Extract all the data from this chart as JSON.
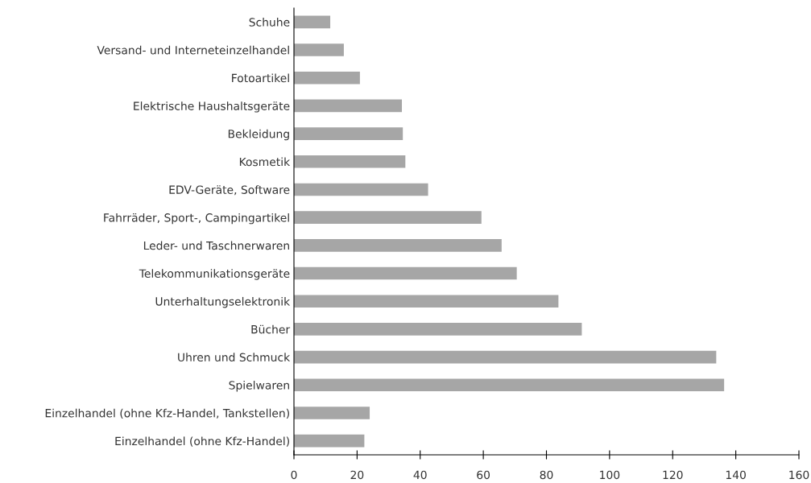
{
  "chart_data": {
    "type": "bar",
    "orientation": "horizontal",
    "categories": [
      "Schuhe",
      "Versand- und Interneteinzelhandel",
      "Fotoartikel",
      "Elektrische Haushaltsgeräte",
      "Bekleidung",
      "Kosmetik",
      "EDV-Geräte, Software",
      "Fahrräder, Sport-, Campingartikel",
      "Leder- und Taschnerwaren",
      "Telekommunikationsgeräte",
      "Unterhaltungselektronik",
      "Bücher",
      "Uhren und Schmuck",
      "Spielwaren",
      "Einzelhandel (ohne Kfz-Handel, Tankstellen)",
      "Einzelhandel (ohne Kfz-Handel)"
    ],
    "values": [
      11.5,
      15.8,
      20.9,
      34.2,
      34.5,
      35.3,
      42.5,
      59.4,
      65.8,
      70.6,
      83.8,
      91.2,
      133.8,
      136.3,
      24.0,
      22.3
    ],
    "color": "#a6a6a6",
    "xlim": [
      0,
      160
    ],
    "xticks": [
      0,
      20,
      40,
      60,
      80,
      100,
      120,
      140,
      160
    ],
    "grid": false,
    "legend": false
  }
}
